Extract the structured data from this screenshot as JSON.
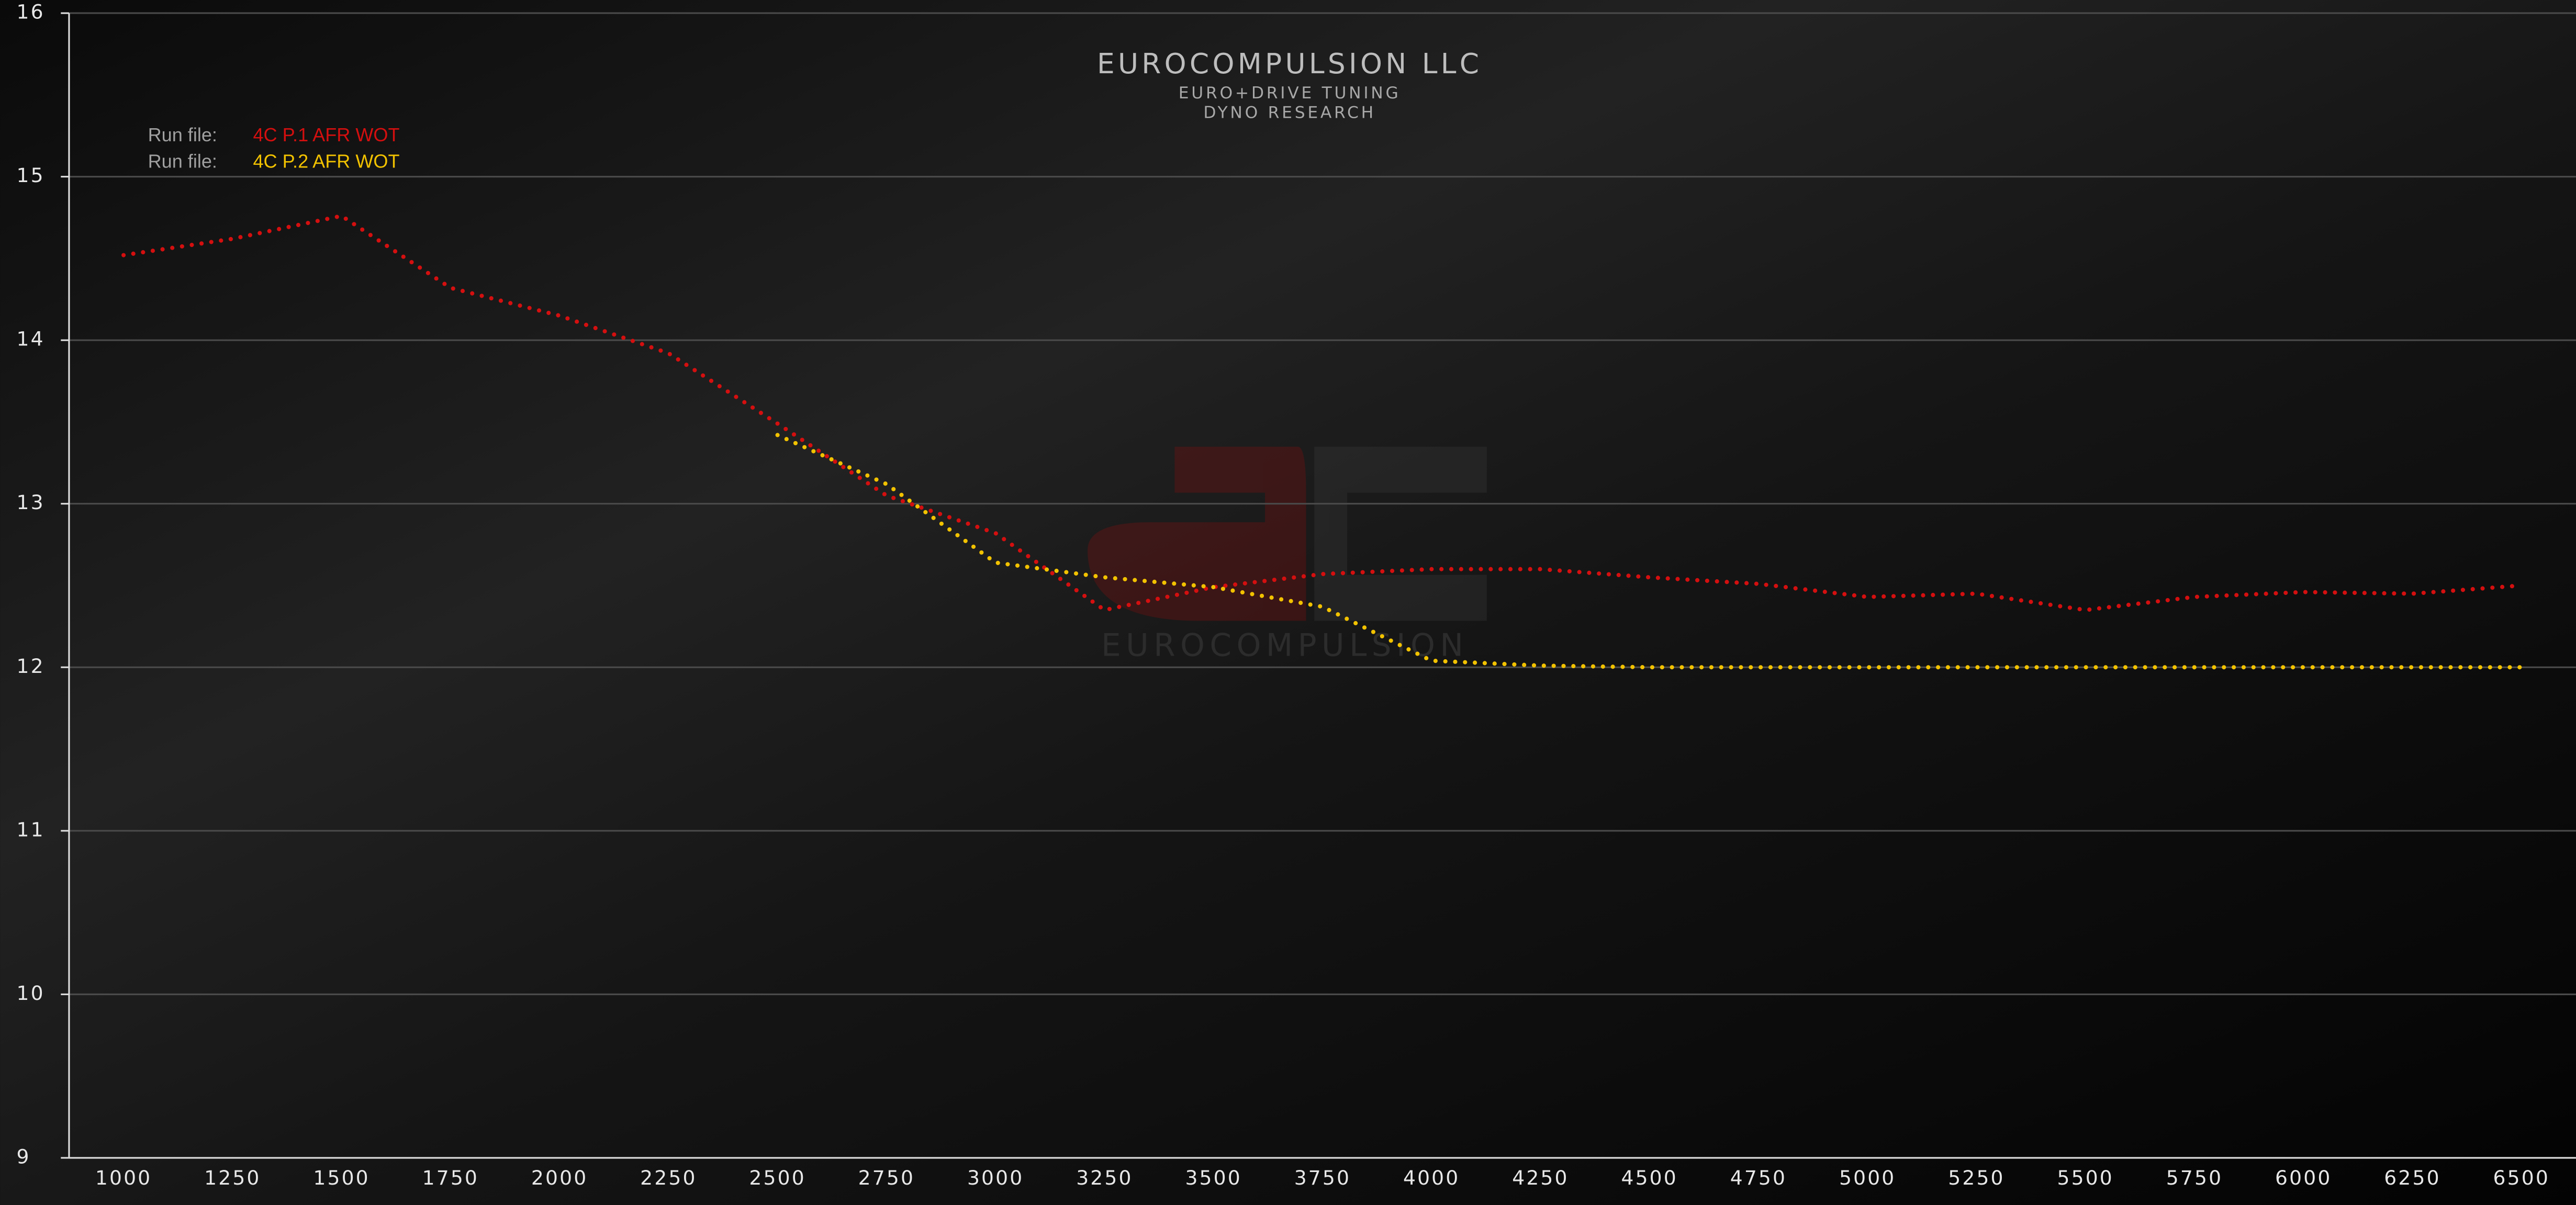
{
  "chart_data": {
    "type": "line",
    "title": "EUROCOMPULSION LLC",
    "subtitle": [
      "EURO+DRIVE TUNING",
      "DYNO RESEARCH"
    ],
    "watermark": "EUROCOMPULSION",
    "legend_prefix": "Run file:",
    "x": [
      1000,
      1250,
      1500,
      1750,
      2000,
      2250,
      2500,
      2750,
      3000,
      3250,
      3500,
      3750,
      4000,
      4250,
      4500,
      4750,
      5000,
      5250,
      5500,
      5750,
      6000,
      6250,
      6500
    ],
    "series": [
      {
        "name": "4C P.1 AFR WOT",
        "color": "#d40f0f",
        "values": [
          14.52,
          14.62,
          14.76,
          14.32,
          14.15,
          13.92,
          13.49,
          13.05,
          12.82,
          12.35,
          12.49,
          12.57,
          12.6,
          12.6,
          12.55,
          12.51,
          12.43,
          12.45,
          12.35,
          12.43,
          12.46,
          12.45,
          12.5
        ]
      },
      {
        "name": "4C P.2 AFR WOT",
        "color": "#f2c200",
        "values": [
          null,
          null,
          null,
          null,
          null,
          null,
          13.42,
          13.12,
          12.64,
          12.55,
          12.49,
          12.37,
          12.04,
          12.01,
          12.0,
          12.0,
          12.0,
          12.0,
          12.0,
          12.0,
          12.0,
          12.0,
          12.0
        ]
      }
    ],
    "xlim": [
      875,
      6625
    ],
    "xticks": [
      1000,
      1250,
      1500,
      1750,
      2000,
      2250,
      2500,
      2750,
      3000,
      3250,
      3500,
      3750,
      4000,
      4250,
      4500,
      4750,
      5000,
      5250,
      5500,
      5750,
      6000,
      6250,
      6500
    ],
    "ylim": [
      9,
      16
    ],
    "yticks": [
      9,
      10,
      11,
      12,
      13,
      14,
      15,
      16
    ],
    "grid": true
  }
}
